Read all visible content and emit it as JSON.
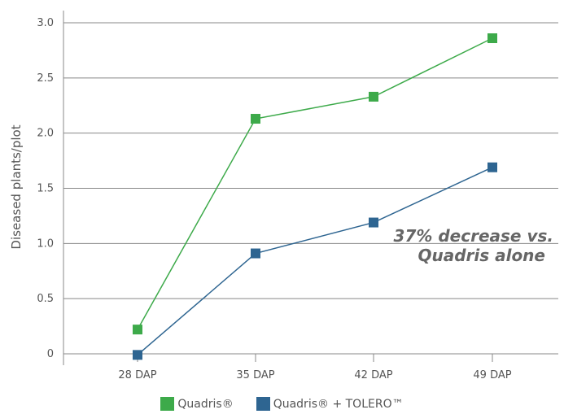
{
  "chart_data": {
    "type": "line",
    "title": "",
    "xlabel": "",
    "ylabel": "Diseased plants/plot",
    "categories": [
      "28 DAP",
      "35 DAP",
      "42 DAP",
      "49 DAP"
    ],
    "ylim": [
      0,
      3.0
    ],
    "yticks": [
      "0",
      "0.5",
      "1.0",
      "1.5",
      "2.0",
      "2.5",
      "3.0"
    ],
    "grid": "horizontal",
    "legend_position": "bottom",
    "series": [
      {
        "name": "Quadris®",
        "color": "#3DAA4A",
        "values": [
          0.22,
          2.13,
          2.33,
          2.86
        ]
      },
      {
        "name": "Quadris® + TOLERO™",
        "color": "#2E6591",
        "values": [
          -0.01,
          0.91,
          1.19,
          1.69
        ]
      }
    ],
    "annotation": [
      "37% decrease vs.",
      "Quadris alone"
    ]
  }
}
